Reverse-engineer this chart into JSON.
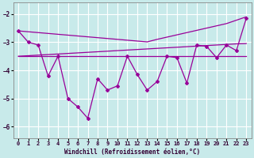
{
  "xlabel": "Windchill (Refroidissement éolien,°C)",
  "background_color": "#c8eaea",
  "grid_color": "#ffffff",
  "line_color": "#990099",
  "xlim": [
    -0.5,
    23.5
  ],
  "ylim": [
    -6.4,
    -1.6
  ],
  "yticks": [
    -6,
    -5,
    -4,
    -3,
    -2
  ],
  "xticks": [
    0,
    1,
    2,
    3,
    4,
    5,
    6,
    7,
    8,
    9,
    10,
    11,
    12,
    13,
    14,
    15,
    16,
    17,
    18,
    19,
    20,
    21,
    22,
    23
  ],
  "hourly": [
    -2.6,
    -3.0,
    -3.1,
    -4.2,
    -3.5,
    -5.0,
    -5.3,
    -5.7,
    -4.3,
    -4.7,
    -4.55,
    -3.5,
    -4.15,
    -4.7,
    -4.4,
    -3.5,
    -3.55,
    -4.45,
    -3.1,
    -3.15,
    -3.55,
    -3.1,
    -3.3,
    -2.15
  ],
  "line_upper": [
    -2.6,
    -2.63,
    -2.66,
    -2.69,
    -2.72,
    -2.75,
    -2.78,
    -2.81,
    -2.84,
    -2.87,
    -2.9,
    -2.93,
    -2.96,
    -2.99,
    -2.9,
    -2.82,
    -2.74,
    -2.66,
    -2.58,
    -2.5,
    -2.42,
    -2.34,
    -2.22,
    -2.1
  ],
  "line_mid": [
    -3.5,
    -3.48,
    -3.46,
    -3.44,
    -3.42,
    -3.4,
    -3.38,
    -3.36,
    -3.34,
    -3.32,
    -3.3,
    -3.28,
    -3.26,
    -3.24,
    -3.22,
    -3.2,
    -3.18,
    -3.16,
    -3.14,
    -3.12,
    -3.1,
    -3.08,
    -3.06,
    -3.05
  ],
  "line_flat": [
    -3.5,
    -3.5,
    -3.5,
    -3.5,
    -3.5,
    -3.5,
    -3.5,
    -3.5,
    -3.5,
    -3.5,
    -3.5,
    -3.5,
    -3.5,
    -3.5,
    -3.5,
    -3.5,
    -3.5,
    -3.5,
    -3.5,
    -3.5,
    -3.5,
    -3.5,
    -3.5,
    -3.5
  ]
}
